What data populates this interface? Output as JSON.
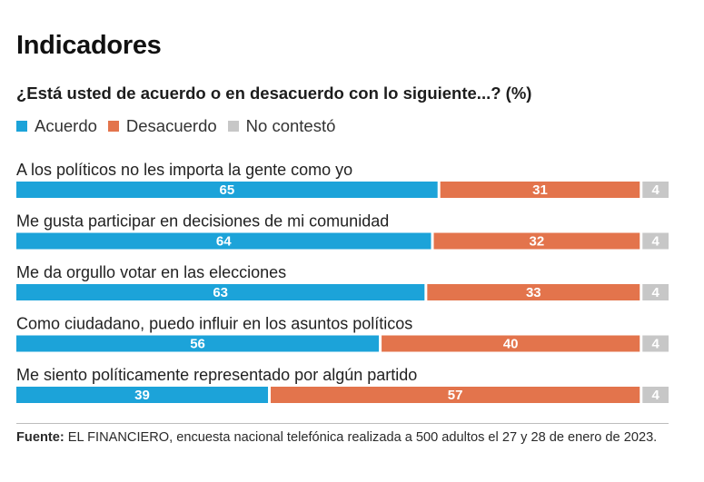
{
  "title": "Indicadores",
  "subtitle": "¿Está usted de acuerdo o en desacuerdo con lo siguiente...? (%)",
  "legend": [
    {
      "label": "Acuerdo",
      "color": "#1ca3d9"
    },
    {
      "label": "Desacuerdo",
      "color": "#e3744c"
    },
    {
      "label": "No contestó",
      "color": "#c7c7c7"
    }
  ],
  "chart_data": {
    "type": "bar",
    "orientation": "horizontal",
    "stacked": true,
    "categories": [
      "A los políticos no les importa la gente como yo",
      "Me gusta participar en decisiones de mi comunidad",
      "Me da orgullo votar en las elecciones",
      "Como ciudadano, puedo influir en los asuntos políticos",
      "Me siento políticamente representado por algún partido"
    ],
    "series": [
      {
        "name": "Acuerdo",
        "color": "#1ca3d9",
        "values": [
          65,
          64,
          63,
          56,
          39
        ]
      },
      {
        "name": "Desacuerdo",
        "color": "#e3744c",
        "values": [
          31,
          32,
          33,
          40,
          57
        ]
      },
      {
        "name": "No contestó",
        "color": "#c7c7c7",
        "values": [
          4,
          4,
          4,
          4,
          4
        ]
      }
    ],
    "xlim": [
      0,
      100
    ],
    "grid": false,
    "legend_position": "top-left"
  },
  "footer": {
    "label": "Fuente:",
    "text": " EL FINANCIERO, encuesta nacional telefónica realizada a 500 adultos el 27 y 28 de enero de 2023."
  }
}
